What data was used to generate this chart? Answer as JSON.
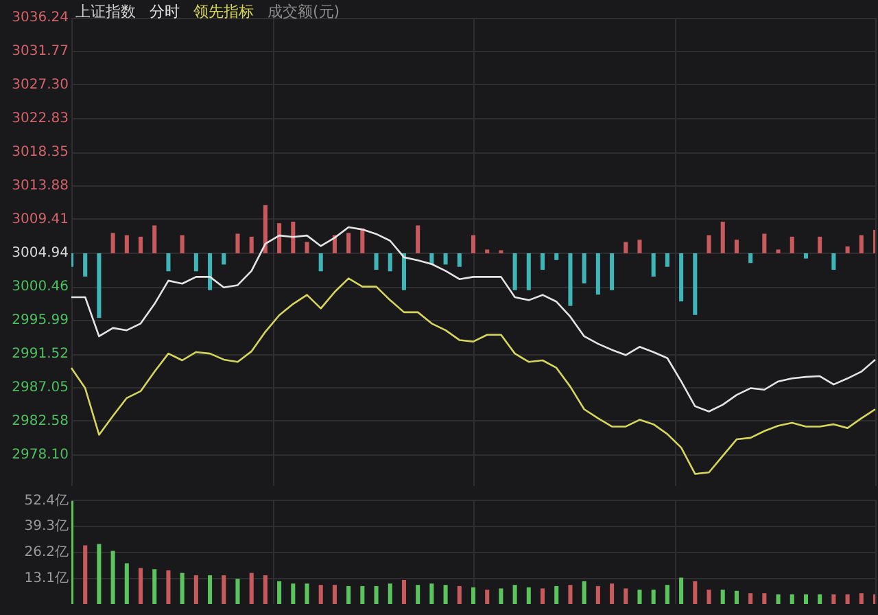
{
  "chart_data": [
    {
      "type": "line",
      "title": "上证指数",
      "legend": "top left",
      "grid": true,
      "tick_labels": "y",
      "categories": [
        null,
        null,
        null,
        null,
        null,
        null,
        null,
        null,
        null,
        null,
        null,
        null,
        null,
        null,
        null,
        null,
        null,
        null,
        null,
        null,
        null,
        null,
        null,
        null,
        null,
        null,
        null,
        null,
        null,
        null,
        null,
        null,
        null,
        null,
        null,
        null,
        null,
        null,
        null,
        null,
        null,
        null,
        null,
        null,
        null,
        null,
        null,
        null,
        null,
        null,
        null,
        null,
        null,
        null,
        null,
        null,
        null,
        null,
        null
      ],
      "series": [
        {
          "name": "分时",
          "color": "#e4e4e4",
          "values": [
            2999.1,
            2999.1,
            2993.9,
            2995.0,
            2994.7,
            2995.6,
            2998.2,
            3001.3,
            3000.9,
            3001.8,
            3001.8,
            3000.4,
            3000.7,
            3002.6,
            3006.2,
            3007.3,
            3007.1,
            3007.3,
            3005.9,
            3007.0,
            3008.4,
            3008.1,
            3007.5,
            3006.6,
            3004.4,
            3004.0,
            3003.5,
            3002.6,
            3001.5,
            3001.8,
            3001.8,
            3001.8,
            2999.1,
            2998.7,
            2999.4,
            2998.5,
            2996.5,
            2993.9,
            2992.9,
            2992.1,
            2991.4,
            2992.5,
            2991.8,
            2991.0,
            2987.9,
            2984.6,
            2983.9,
            2984.8,
            2986.1,
            2987.0,
            2986.8,
            2987.9,
            2988.3,
            2988.5,
            2988.6,
            2987.5,
            2988.3,
            2989.2,
            2990.8
          ]
        },
        {
          "name": "领先指标",
          "color": "#d6d65c",
          "values": [
            2989.7,
            2987.0,
            2980.8,
            2983.3,
            2985.7,
            2986.6,
            2989.2,
            2991.6,
            2990.7,
            2991.8,
            2991.6,
            2990.8,
            2990.5,
            2991.9,
            2994.5,
            2996.7,
            2998.2,
            2999.4,
            2997.6,
            2999.8,
            3001.6,
            3000.5,
            3000.5,
            2998.7,
            2997.1,
            2997.1,
            2995.6,
            2994.7,
            2993.4,
            2993.2,
            2994.1,
            2994.1,
            2991.6,
            2990.5,
            2990.7,
            2989.7,
            2987.2,
            2984.2,
            2983.0,
            2981.9,
            2981.9,
            2982.8,
            2982.2,
            2980.9,
            2979.1,
            2975.6,
            2975.8,
            2978.0,
            2980.2,
            2980.4,
            2981.3,
            2982.0,
            2982.4,
            2981.9,
            2981.9,
            2982.2,
            2981.7,
            2983.0,
            2984.2
          ]
        },
        {
          "type": "bar",
          "base": [
            3004.94,
            3004.94,
            3004.94,
            3004.94,
            3004.94,
            3004.94,
            3004.94,
            3004.94,
            3004.94,
            3004.94,
            3004.94,
            3004.94,
            3004.94,
            3004.94,
            3004.94,
            3004.94,
            3004.94,
            3004.94,
            3004.94,
            3004.94,
            3004.94,
            3004.94,
            3004.94,
            3004.94,
            3004.94,
            3004.94,
            3004.94,
            3004.94,
            3004.94,
            3004.94,
            3004.94,
            3004.94,
            3004.94,
            3004.94,
            3004.94,
            3004.94,
            3004.94,
            3004.94,
            3004.94,
            3004.94,
            3004.94,
            3004.94,
            3004.94,
            3004.94,
            3004.94,
            3004.94,
            3004.94,
            3004.94,
            3004.94,
            3004.94,
            3004.94,
            3004.94,
            3004.94,
            3004.94,
            3004.94,
            3004.94,
            3004.94,
            3004.94,
            3004.94
          ],
          "values": [
            -1.8,
            -3.1,
            -8.6,
            2.7,
            2.4,
            2.2,
            3.7,
            -2.4,
            2.4,
            -2.4,
            -4.9,
            -1.5,
            2.6,
            2.2,
            6.4,
            4.0,
            4.2,
            1.5,
            -2.4,
            2.4,
            2.7,
            3.3,
            -2.2,
            -2.4,
            -4.9,
            3.7,
            -1.5,
            -1.5,
            -1.8,
            2.4,
            0.5,
            0.4,
            -4.9,
            -4.9,
            -2.2,
            -0.9,
            -7.0,
            -4.0,
            -5.5,
            -4.9,
            1.5,
            1.8,
            -3.1,
            -1.8,
            -6.4,
            -8.2,
            2.4,
            4.2,
            1.8,
            -1.3,
            2.6,
            0.5,
            2.2,
            -0.7,
            2.2,
            -2.2,
            0.9,
            2.4,
            3.1
          ],
          "colors": [
            "#3fb5b8",
            "#3fb5b8",
            "#3fb5b8",
            "#c85a5e",
            "#c85a5e",
            "#c85a5e",
            "#c85a5e",
            "#3fb5b8",
            "#c85a5e",
            "#3fb5b8",
            "#3fb5b8",
            "#3fb5b8",
            "#c85a5e",
            "#c85a5e",
            "#c85a5e",
            "#c85a5e",
            "#c85a5e",
            "#c85a5e",
            "#3fb5b8",
            "#c85a5e",
            "#c85a5e",
            "#c85a5e",
            "#3fb5b8",
            "#3fb5b8",
            "#3fb5b8",
            "#c85a5e",
            "#3fb5b8",
            "#3fb5b8",
            "#3fb5b8",
            "#c85a5e",
            "#c85a5e",
            "#c85a5e",
            "#3fb5b8",
            "#3fb5b8",
            "#3fb5b8",
            "#3fb5b8",
            "#3fb5b8",
            "#3fb5b8",
            "#3fb5b8",
            "#3fb5b8",
            "#c85a5e",
            "#c85a5e",
            "#3fb5b8",
            "#3fb5b8",
            "#3fb5b8",
            "#3fb5b8",
            "#c85a5e",
            "#c85a5e",
            "#c85a5e",
            "#3fb5b8",
            "#c85a5e",
            "#c85a5e",
            "#c85a5e",
            "#3fb5b8",
            "#c85a5e",
            "#3fb5b8",
            "#c85a5e",
            "#c85a5e",
            "#c85a5e"
          ]
        }
      ],
      "ylim": [
        2974.0,
        3036.24
      ],
      "yticks": [
        {
          "value": 2978.1,
          "label": "2978.10"
        },
        2982.58,
        2987.05,
        2991.52,
        2995.99,
        3000.46,
        3004.94,
        3009.41,
        3013.88,
        3018.35,
        3022.83,
        {
          "value": 3027.3,
          "label": "3027.30"
        },
        3031.77,
        3036.24
      ]
    },
    {
      "type": "bar",
      "title": "成交额(元)",
      "grid": true,
      "tick_labels": "y",
      "categories": [
        null,
        null,
        null,
        null,
        null,
        null,
        null,
        null,
        null,
        null,
        null,
        null,
        null,
        null,
        null,
        null,
        null,
        null,
        null,
        null,
        null,
        null,
        null,
        null,
        null,
        null,
        null,
        null,
        null,
        null,
        null,
        null,
        null,
        null,
        null,
        null,
        null,
        null,
        null,
        null,
        null,
        null,
        null,
        null,
        null,
        null,
        null,
        null,
        null,
        null,
        null,
        null,
        null,
        null,
        null,
        null,
        null,
        null,
        null
      ],
      "values": [
        52.4,
        29.8,
        30.5,
        27,
        20.7,
        18.3,
        17.7,
        17.1,
        15.8,
        14.6,
        14.6,
        14.6,
        12.8,
        15.8,
        14.6,
        11.6,
        10.4,
        10.4,
        9.7,
        9.7,
        9.1,
        9.1,
        9.1,
        10.4,
        12.2,
        9.7,
        10.4,
        9.7,
        9.1,
        8.5,
        7.3,
        7.9,
        9.7,
        8.5,
        7.9,
        9.1,
        9.7,
        11.6,
        9.1,
        10.4,
        7.9,
        7.3,
        7.3,
        9.7,
        13.4,
        11.6,
        7.3,
        7.3,
        6.7,
        5.5,
        5.5,
        4.9,
        4.9,
        4.9,
        4.9,
        4.9,
        4.9,
        5.5,
        4.9
      ],
      "colors": [
        "#5cc45c",
        "#c85a5e",
        "#5cc45c",
        "#5cc45c",
        "#5cc45c",
        "#c85a5e",
        "#5cc45c",
        "#c85a5e",
        "#5cc45c",
        "#c85a5e",
        "#5cc45c",
        "#c85a5e",
        "#5cc45c",
        "#c85a5e",
        "#c85a5e",
        "#5cc45c",
        "#5cc45c",
        "#5cc45c",
        "#c85a5e",
        "#c85a5e",
        "#5cc45c",
        "#5cc45c",
        "#5cc45c",
        "#5cc45c",
        "#c85a5e",
        "#5cc45c",
        "#5cc45c",
        "#5cc45c",
        "#c85a5e",
        "#5cc45c",
        "#c85a5e",
        "#5cc45c",
        "#5cc45c",
        "#5cc45c",
        "#c85a5e",
        "#5cc45c",
        "#c85a5e",
        "#5cc45c",
        "#c85a5e",
        "#c85a5e",
        "#c85a5e",
        "#5cc45c",
        "#5cc45c",
        "#5cc45c",
        "#5cc45c",
        "#c85a5e",
        "#c85a5e",
        "#5cc45c",
        "#5cc45c",
        "#c85a5e",
        "#c85a5e",
        "#5cc45c",
        "#5cc45c",
        "#5cc45c",
        "#5cc45c",
        "#c85a5e",
        "#c85a5e",
        "#c85a5e",
        "#c85a5e"
      ],
      "ylim": [
        0,
        53
      ],
      "yticks": [
        {
          "value": 13.1,
          "label": "13.1亿"
        },
        {
          "value": 26.2,
          "label": "26.2亿"
        },
        {
          "value": 39.3,
          "label": "39.3亿"
        },
        {
          "value": 52.4,
          "label": "52.4亿"
        }
      ]
    }
  ]
}
